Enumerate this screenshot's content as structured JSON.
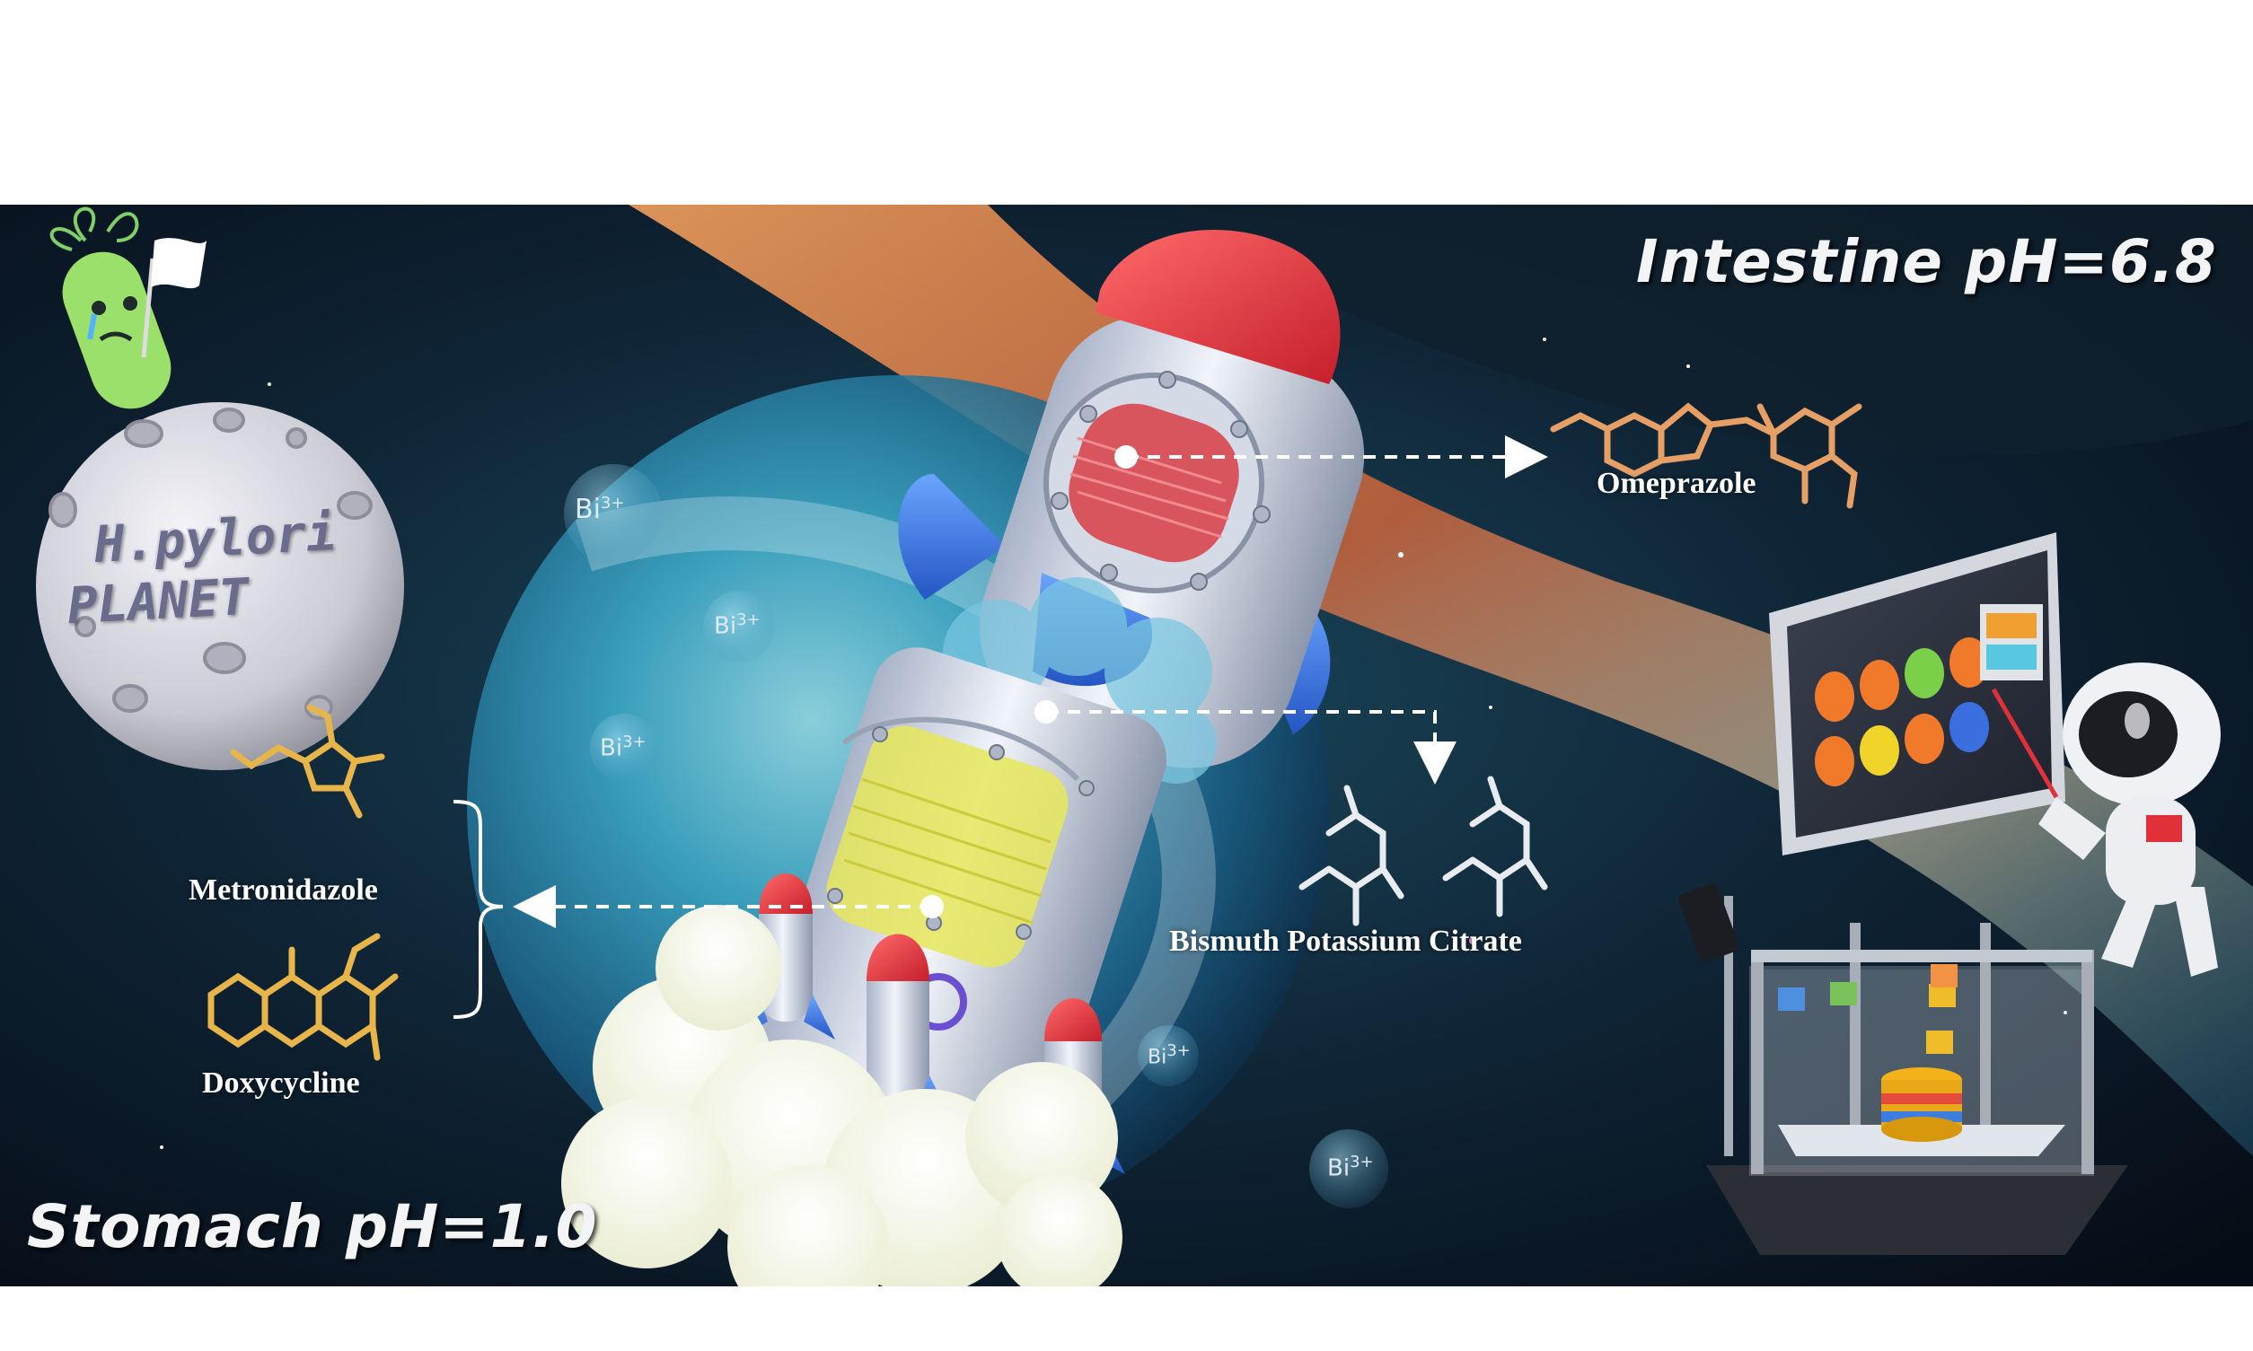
{
  "labels": {
    "intestine": "Intestine  pH=6.8",
    "stomach": "Stomach  pH=1.0",
    "planet_line1": "H.pylori",
    "planet_line2": "PLANET",
    "omeprazole": "Omeprazole",
    "bismuth": "Bismuth Potassium Citrate",
    "metronidazole": "Metronidazole",
    "doxycycline": "Doxycycline"
  },
  "ions": {
    "symbol": "Bi",
    "charge": "3+"
  },
  "colors": {
    "space_dark": "#0b1522",
    "nebula_cyan": "#2a9bb8",
    "nebula_orange": "#e07a3a",
    "rocket_red": "#e0303a",
    "rocket_blue": "#3a7be0",
    "drug_layer_red": "#d9464f",
    "drug_layer_yellow": "#e6e85c",
    "molecule_gold": "#e8b54a",
    "molecule_white": "#e8ecf0"
  },
  "icons": [
    "bacterium-icon",
    "white-flag-icon",
    "rocket-icon",
    "astronaut-icon",
    "3d-printer-icon",
    "tablet-screen-icon",
    "molecule-icon"
  ]
}
